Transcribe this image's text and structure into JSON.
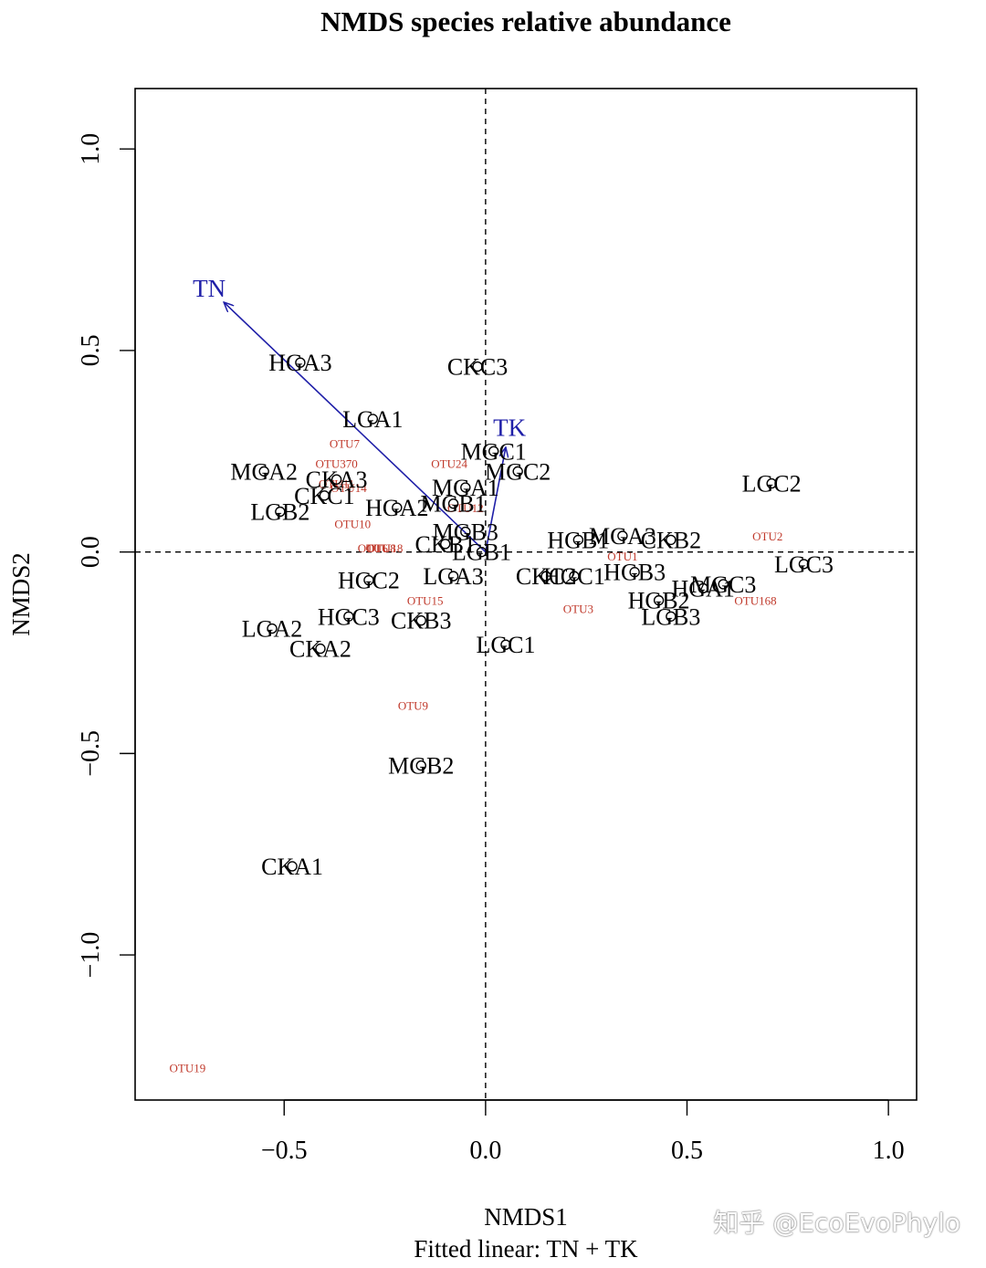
{
  "chart_data": {
    "type": "scatter",
    "title": "NMDS species relative abundance",
    "xlabel": "NMDS1",
    "ylabel": "NMDS2",
    "subtitle": "Fitted linear: TN + TK",
    "xlim": [
      -0.87,
      1.07
    ],
    "ylim": [
      -1.36,
      1.15
    ],
    "x_ticks": [
      -0.5,
      0.0,
      0.5,
      1.0
    ],
    "x_tick_labels": [
      "−0.5",
      "0.0",
      "0.5",
      "1.0"
    ],
    "y_ticks": [
      -1.0,
      -0.5,
      0.0,
      0.5,
      1.0
    ],
    "y_tick_labels": [
      "−1.0",
      "−0.5",
      "0.0",
      "0.5",
      "1.0"
    ],
    "reference_lines": {
      "x": 0,
      "y": 0
    },
    "sample_color": "#000000",
    "species_color": "#c0392b",
    "vector_color": "#1f1fa8",
    "samples": [
      {
        "label": "HGA3",
        "x": -0.46,
        "y": 0.47
      },
      {
        "label": "CKC3",
        "x": -0.02,
        "y": 0.46
      },
      {
        "label": "LGA1",
        "x": -0.28,
        "y": 0.33
      },
      {
        "label": "MGC1",
        "x": 0.02,
        "y": 0.25
      },
      {
        "label": "MGA2",
        "x": -0.55,
        "y": 0.2
      },
      {
        "label": "CKA3",
        "x": -0.37,
        "y": 0.18
      },
      {
        "label": "MGC2",
        "x": 0.08,
        "y": 0.2
      },
      {
        "label": "MGA1",
        "x": -0.05,
        "y": 0.16
      },
      {
        "label": "CKC1",
        "x": -0.4,
        "y": 0.14
      },
      {
        "label": "MGB1",
        "x": -0.08,
        "y": 0.12
      },
      {
        "label": "HGA2",
        "x": -0.22,
        "y": 0.11
      },
      {
        "label": "LGB2",
        "x": -0.51,
        "y": 0.1
      },
      {
        "label": "LGC2",
        "x": 0.71,
        "y": 0.17
      },
      {
        "label": "MGB3",
        "x": -0.05,
        "y": 0.05
      },
      {
        "label": "HGB1",
        "x": 0.23,
        "y": 0.03
      },
      {
        "label": "MGA3",
        "x": 0.34,
        "y": 0.04
      },
      {
        "label": "CKB2",
        "x": 0.46,
        "y": 0.03
      },
      {
        "label": "CKB1",
        "x": -0.1,
        "y": 0.02
      },
      {
        "label": "LGB1",
        "x": -0.01,
        "y": 0.0
      },
      {
        "label": "LGC3",
        "x": 0.79,
        "y": -0.03
      },
      {
        "label": "HGC2",
        "x": -0.29,
        "y": -0.07
      },
      {
        "label": "LGA3",
        "x": -0.08,
        "y": -0.06
      },
      {
        "label": "CKC2",
        "x": 0.15,
        "y": -0.06
      },
      {
        "label": "HGC1",
        "x": 0.22,
        "y": -0.06
      },
      {
        "label": "HGB3",
        "x": 0.37,
        "y": -0.05
      },
      {
        "label": "MGC3",
        "x": 0.59,
        "y": -0.08
      },
      {
        "label": "HGA1",
        "x": 0.54,
        "y": -0.09
      },
      {
        "label": "HGB2",
        "x": 0.43,
        "y": -0.12
      },
      {
        "label": "LGB3",
        "x": 0.46,
        "y": -0.16
      },
      {
        "label": "HGC3",
        "x": -0.34,
        "y": -0.16
      },
      {
        "label": "CKB3",
        "x": -0.16,
        "y": -0.17
      },
      {
        "label": "LGA2",
        "x": -0.53,
        "y": -0.19
      },
      {
        "label": "CKA2",
        "x": -0.41,
        "y": -0.24
      },
      {
        "label": "LGC1",
        "x": 0.05,
        "y": -0.23
      },
      {
        "label": "MGB2",
        "x": -0.16,
        "y": -0.53
      },
      {
        "label": "CKA1",
        "x": -0.48,
        "y": -0.78
      }
    ],
    "species": [
      {
        "label": "OTU7",
        "x": -0.35,
        "y": 0.27
      },
      {
        "label": "OTU370",
        "x": -0.37,
        "y": 0.22
      },
      {
        "label": "OTU24",
        "x": -0.09,
        "y": 0.22
      },
      {
        "label": "OTU11",
        "x": -0.37,
        "y": 0.17
      },
      {
        "label": "OTU14",
        "x": -0.34,
        "y": 0.16
      },
      {
        "label": "OTU12",
        "x": -0.05,
        "y": 0.11
      },
      {
        "label": "OTU10",
        "x": -0.33,
        "y": 0.07
      },
      {
        "label": "OTU6",
        "x": -0.28,
        "y": 0.01
      },
      {
        "label": "OTU8",
        "x": -0.26,
        "y": 0.01
      },
      {
        "label": "OTU18",
        "x": -0.25,
        "y": 0.01
      },
      {
        "label": "OTU2",
        "x": 0.7,
        "y": 0.04
      },
      {
        "label": "OTU1",
        "x": 0.34,
        "y": -0.01
      },
      {
        "label": "OTU15",
        "x": -0.15,
        "y": -0.12
      },
      {
        "label": "OTU3",
        "x": 0.23,
        "y": -0.14
      },
      {
        "label": "OTU168",
        "x": 0.67,
        "y": -0.12
      },
      {
        "label": "OTU9",
        "x": -0.18,
        "y": -0.38
      },
      {
        "label": "OTU19",
        "x": -0.74,
        "y": -1.28
      }
    ],
    "vectors": [
      {
        "label": "TN",
        "x": -0.65,
        "y": 0.62
      },
      {
        "label": "TK",
        "x": 0.05,
        "y": 0.26
      }
    ]
  },
  "watermark": "知乎 @EcoEvoPhylo"
}
